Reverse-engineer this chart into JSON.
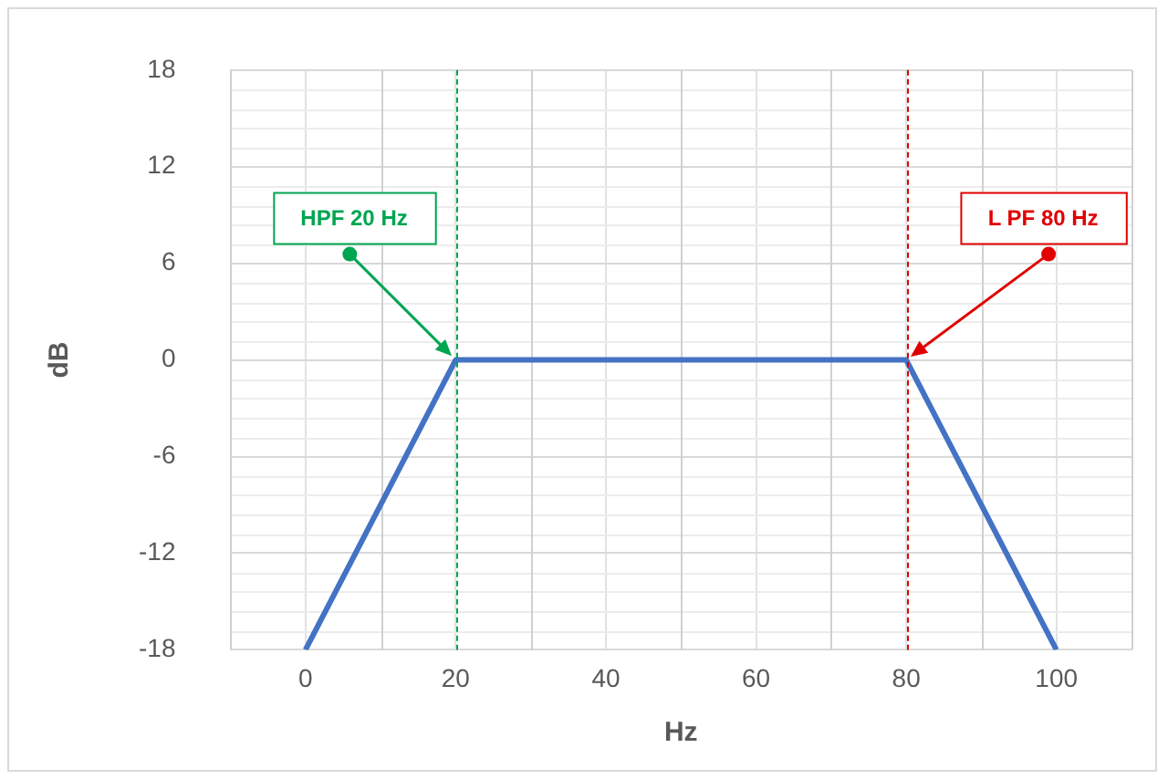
{
  "chart_data": {
    "type": "line",
    "xlabel": "Hz",
    "ylabel": "dB",
    "x": [
      0,
      20,
      80,
      100
    ],
    "series": [
      {
        "color": "#4472c4",
        "values": [
          -18,
          0,
          0,
          -18
        ]
      }
    ],
    "xlim": [
      -10,
      110
    ],
    "xticks": [
      0,
      20,
      40,
      60,
      80,
      100
    ],
    "ylim": [
      -18,
      18
    ],
    "yticks": [
      -18,
      -12,
      -6,
      0,
      6,
      12,
      18
    ],
    "grid": true,
    "legend": false,
    "marker": "none",
    "line_style": "solid",
    "ref_lines": [
      {
        "axis": "x",
        "value": 20,
        "label": "HPF 20 Hz",
        "color": "#00a550",
        "line_style": "dashed"
      },
      {
        "axis": "x",
        "value": 80,
        "label": "L PF 80 Hz",
        "color": "#e00000",
        "line_style": "dashed"
      }
    ]
  }
}
